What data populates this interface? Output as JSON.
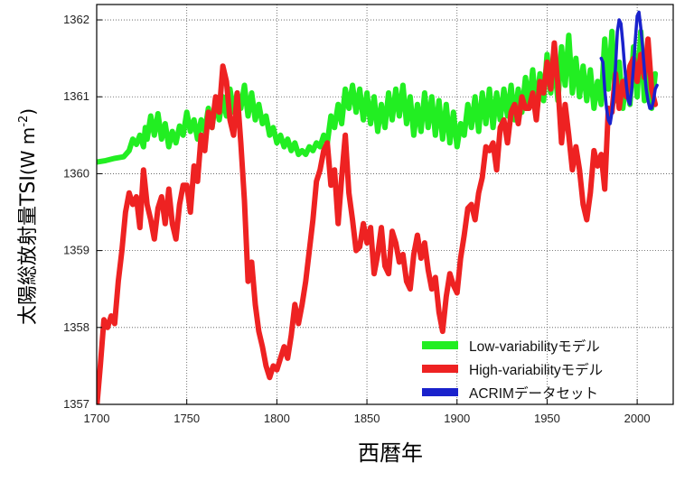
{
  "chart_data": {
    "type": "line",
    "title": "",
    "xlabel": "西暦年",
    "ylabel": "太陽総放射量TSI",
    "ylabel_unit_prefix": "(W m",
    "ylabel_unit_exp": "-2",
    "ylabel_unit_suffix": ")",
    "xlim": [
      1700,
      2020
    ],
    "ylim": [
      1357,
      1362.2
    ],
    "xticks": [
      1700,
      1750,
      1800,
      1850,
      1900,
      1950,
      2000
    ],
    "yticks": [
      1357,
      1358,
      1359,
      1360,
      1361,
      1362
    ],
    "grid": true,
    "legend_position": "bottom-right",
    "series": [
      {
        "name": "Low-variabilityモデル",
        "color": "#22ee22",
        "x": [
          1700,
          1705,
          1710,
          1715,
          1718,
          1720,
          1722,
          1724,
          1726,
          1727,
          1728,
          1730,
          1732,
          1734,
          1736,
          1738,
          1740,
          1742,
          1744,
          1746,
          1748,
          1750,
          1752,
          1754,
          1756,
          1758,
          1760,
          1762,
          1764,
          1766,
          1768,
          1770,
          1772,
          1774,
          1776,
          1778,
          1780,
          1782,
          1784,
          1786,
          1788,
          1790,
          1792,
          1794,
          1796,
          1798,
          1800,
          1802,
          1804,
          1806,
          1808,
          1810,
          1812,
          1814,
          1816,
          1818,
          1820,
          1822,
          1824,
          1826,
          1828,
          1830,
          1832,
          1834,
          1836,
          1838,
          1840,
          1842,
          1844,
          1846,
          1848,
          1850,
          1852,
          1854,
          1856,
          1858,
          1860,
          1862,
          1864,
          1866,
          1868,
          1870,
          1872,
          1874,
          1876,
          1878,
          1880,
          1882,
          1884,
          1886,
          1888,
          1890,
          1892,
          1894,
          1896,
          1898,
          1900,
          1902,
          1904,
          1906,
          1908,
          1910,
          1912,
          1914,
          1916,
          1918,
          1920,
          1922,
          1924,
          1926,
          1928,
          1930,
          1932,
          1934,
          1936,
          1938,
          1940,
          1942,
          1944,
          1946,
          1948,
          1950,
          1952,
          1954,
          1956,
          1958,
          1960,
          1962,
          1964,
          1966,
          1968,
          1970,
          1972,
          1974,
          1976,
          1978,
          1980,
          1982,
          1984,
          1986,
          1988,
          1990,
          1992,
          1994,
          1996,
          1998,
          2000,
          2002,
          2004,
          2006,
          2008,
          2010
        ],
        "y": [
          1360.15,
          1360.17,
          1360.2,
          1360.22,
          1360.3,
          1360.45,
          1360.38,
          1360.5,
          1360.35,
          1360.6,
          1360.45,
          1360.75,
          1360.5,
          1360.78,
          1360.45,
          1360.65,
          1360.35,
          1360.55,
          1360.4,
          1360.62,
          1360.5,
          1360.8,
          1360.55,
          1360.7,
          1360.45,
          1360.7,
          1360.55,
          1360.85,
          1360.6,
          1360.95,
          1360.7,
          1361.0,
          1360.75,
          1361.1,
          1360.8,
          1361.05,
          1360.85,
          1361.15,
          1360.75,
          1361.05,
          1360.7,
          1360.9,
          1360.65,
          1360.75,
          1360.5,
          1360.6,
          1360.4,
          1360.5,
          1360.35,
          1360.45,
          1360.3,
          1360.4,
          1360.25,
          1360.3,
          1360.25,
          1360.35,
          1360.3,
          1360.4,
          1360.35,
          1360.5,
          1360.4,
          1360.75,
          1360.6,
          1360.9,
          1360.65,
          1361.1,
          1360.85,
          1361.15,
          1360.8,
          1361.1,
          1360.7,
          1361.05,
          1360.65,
          1361.0,
          1360.55,
          1360.9,
          1360.6,
          1361.05,
          1360.7,
          1361.1,
          1360.75,
          1361.15,
          1360.65,
          1361.0,
          1360.5,
          1360.9,
          1360.55,
          1361.05,
          1360.6,
          1361.0,
          1360.5,
          1360.95,
          1360.45,
          1360.9,
          1360.4,
          1360.8,
          1360.35,
          1360.65,
          1360.5,
          1360.9,
          1360.6,
          1361.0,
          1360.55,
          1361.05,
          1360.65,
          1361.1,
          1360.6,
          1361.05,
          1360.7,
          1361.1,
          1360.75,
          1361.15,
          1360.7,
          1361.1,
          1360.8,
          1361.25,
          1360.9,
          1361.35,
          1360.85,
          1361.3,
          1360.95,
          1361.55,
          1361.05,
          1361.45,
          1360.95,
          1361.65,
          1361.15,
          1361.8,
          1361.05,
          1361.5,
          1361.0,
          1361.4,
          1360.95,
          1361.35,
          1360.85,
          1361.2,
          1360.9,
          1361.75,
          1361.1,
          1361.85,
          1360.95,
          1361.45,
          1360.85,
          1361.25,
          1360.9,
          1361.65,
          1361.0,
          1361.85,
          1360.95,
          1361.35,
          1360.85,
          1361.3
        ]
      },
      {
        "name": "High-variabilityモデル",
        "color": "#ee2222",
        "x": [
          1700,
          1702,
          1704,
          1706,
          1708,
          1710,
          1712,
          1714,
          1716,
          1718,
          1720,
          1722,
          1724,
          1726,
          1728,
          1730,
          1732,
          1734,
          1736,
          1738,
          1740,
          1742,
          1744,
          1746,
          1748,
          1750,
          1752,
          1754,
          1756,
          1758,
          1760,
          1762,
          1764,
          1766,
          1768,
          1770,
          1772,
          1774,
          1776,
          1778,
          1780,
          1782,
          1784,
          1786,
          1788,
          1790,
          1792,
          1794,
          1796,
          1798,
          1800,
          1802,
          1804,
          1806,
          1808,
          1810,
          1812,
          1814,
          1816,
          1818,
          1820,
          1822,
          1824,
          1826,
          1828,
          1830,
          1832,
          1834,
          1836,
          1838,
          1840,
          1842,
          1844,
          1846,
          1848,
          1850,
          1852,
          1854,
          1856,
          1858,
          1860,
          1862,
          1864,
          1866,
          1868,
          1870,
          1872,
          1874,
          1876,
          1878,
          1880,
          1882,
          1884,
          1886,
          1888,
          1890,
          1892,
          1894,
          1896,
          1898,
          1900,
          1902,
          1904,
          1906,
          1908,
          1910,
          1912,
          1914,
          1916,
          1918,
          1920,
          1922,
          1924,
          1926,
          1928,
          1930,
          1932,
          1934,
          1936,
          1938,
          1940,
          1942,
          1944,
          1946,
          1948,
          1950,
          1952,
          1954,
          1956,
          1958,
          1960,
          1962,
          1964,
          1966,
          1968,
          1970,
          1972,
          1974,
          1976,
          1978,
          1980,
          1982,
          1984,
          1986,
          1988,
          1990,
          1992,
          1994,
          1996,
          1998,
          2000,
          2002,
          2004,
          2006,
          2008,
          2010
        ],
        "y": [
          1356.95,
          1357.5,
          1358.1,
          1358.0,
          1358.15,
          1358.05,
          1358.6,
          1359.0,
          1359.5,
          1359.75,
          1359.6,
          1359.7,
          1359.3,
          1360.05,
          1359.6,
          1359.4,
          1359.15,
          1359.55,
          1359.7,
          1359.35,
          1359.8,
          1359.35,
          1359.15,
          1359.6,
          1359.85,
          1359.85,
          1359.5,
          1360.1,
          1359.9,
          1360.5,
          1360.3,
          1360.8,
          1360.6,
          1361.0,
          1360.8,
          1361.4,
          1361.2,
          1360.7,
          1360.5,
          1361.05,
          1360.4,
          1359.65,
          1358.6,
          1358.85,
          1358.3,
          1357.95,
          1357.75,
          1357.5,
          1357.35,
          1357.5,
          1357.45,
          1357.6,
          1357.75,
          1357.6,
          1357.9,
          1358.3,
          1358.05,
          1358.3,
          1358.6,
          1359.0,
          1359.4,
          1359.9,
          1360.05,
          1360.3,
          1360.4,
          1359.85,
          1360.05,
          1359.35,
          1359.95,
          1360.5,
          1359.75,
          1359.4,
          1359.0,
          1359.05,
          1359.35,
          1359.1,
          1359.3,
          1358.7,
          1358.95,
          1359.3,
          1358.8,
          1358.7,
          1359.25,
          1359.1,
          1358.85,
          1358.95,
          1358.6,
          1358.5,
          1358.95,
          1359.2,
          1358.9,
          1359.1,
          1358.75,
          1358.5,
          1358.65,
          1358.2,
          1357.95,
          1358.4,
          1358.7,
          1358.55,
          1358.45,
          1358.9,
          1359.2,
          1359.55,
          1359.6,
          1359.4,
          1359.75,
          1359.95,
          1360.35,
          1360.3,
          1360.4,
          1360.05,
          1360.6,
          1360.7,
          1360.4,
          1360.8,
          1360.9,
          1360.65,
          1361.0,
          1360.85,
          1360.85,
          1361.05,
          1360.7,
          1361.2,
          1361.05,
          1361.45,
          1361.1,
          1361.7,
          1361.15,
          1360.4,
          1360.9,
          1360.5,
          1360.05,
          1360.35,
          1360.05,
          1359.6,
          1359.4,
          1359.75,
          1360.3,
          1360.1,
          1360.25,
          1359.8,
          1360.85,
          1360.8,
          1361.3,
          1360.85,
          1361.2,
          1361.0,
          1361.4,
          1361.5,
          1361.2,
          1361.55,
          1361.25,
          1361.75,
          1361.1,
          1360.9
        ]
      },
      {
        "name": "ACRIMデータセット",
        "color": "#1a22cc",
        "x": [
          1980,
          1981,
          1982,
          1983,
          1984,
          1985,
          1986,
          1987,
          1988,
          1989,
          1990,
          1991,
          1992,
          1993,
          1994,
          1995,
          1996,
          1997,
          1998,
          1999,
          2000,
          2001,
          2002,
          2003,
          2004,
          2005,
          2006,
          2007,
          2008,
          2009,
          2010,
          2011
        ],
        "y": [
          1361.5,
          1361.45,
          1361.1,
          1360.85,
          1360.7,
          1360.65,
          1360.8,
          1361.05,
          1361.4,
          1361.85,
          1362.0,
          1361.95,
          1361.7,
          1361.4,
          1361.15,
          1360.95,
          1360.9,
          1361.1,
          1361.4,
          1361.75,
          1362.05,
          1362.1,
          1361.9,
          1361.65,
          1361.35,
          1361.1,
          1360.95,
          1360.85,
          1360.85,
          1360.95,
          1361.1,
          1361.15
        ]
      }
    ]
  }
}
